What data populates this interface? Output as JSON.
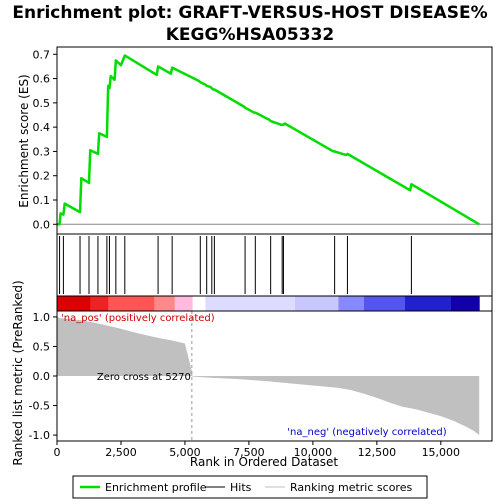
{
  "chart_data": {
    "type": "line",
    "title_line1": "Enrichment plot: GRAFT‐VERSUS‐HOST DISEASE%",
    "title_line2": "KEGG%HSA05332",
    "xlabel": "Rank in Ordered Dataset",
    "ylabel_top": "Enrichment score (ES)",
    "ylabel_bottom": "Ranked list metric (PreRanked)",
    "xlim": [
      0,
      17000
    ],
    "ylim_es": [
      -0.04,
      0.73
    ],
    "ylim_metric": [
      -1.1,
      1.1
    ],
    "x_ticks": [
      0,
      2500,
      5000,
      7500,
      10000,
      12500,
      15000
    ],
    "x_tick_labels": [
      "0",
      "2,500",
      "5,000",
      "7,500",
      "10,000",
      "12,500",
      "15,000"
    ],
    "es_ticks": [
      0.0,
      0.1,
      0.2,
      0.3,
      0.4,
      0.5,
      0.6,
      0.7
    ],
    "es_tick_labels": [
      "0.0",
      "0.1",
      "0.2",
      "0.3",
      "0.4",
      "0.5",
      "0.6",
      "0.7"
    ],
    "metric_ticks": [
      1.0,
      0.5,
      0.0,
      -0.5,
      -1.0
    ],
    "metric_tick_labels": [
      "1.0",
      "0.5",
      "0.0",
      "-0.5",
      "-1.0"
    ],
    "enrichment_profile": {
      "name": "Enrichment profile",
      "color": "#00dd00",
      "x": [
        0,
        100,
        140,
        250,
        300,
        900,
        950,
        1250,
        1300,
        1600,
        1650,
        1950,
        2000,
        2050,
        2100,
        2250,
        2300,
        2500,
        2650,
        3900,
        3950,
        4450,
        4500,
        5550,
        5600,
        5800,
        5850,
        6000,
        6050,
        6100,
        6150,
        7300,
        7350,
        7700,
        7750,
        8300,
        8350,
        8750,
        8800,
        8850,
        8900,
        10800,
        10850,
        11300,
        11350,
        13800,
        13850,
        16500
      ],
      "y": [
        0.0,
        0.0,
        0.045,
        0.04,
        0.085,
        0.05,
        0.19,
        0.17,
        0.305,
        0.29,
        0.375,
        0.36,
        0.57,
        0.56,
        0.61,
        0.595,
        0.675,
        0.655,
        0.695,
        0.615,
        0.65,
        0.62,
        0.645,
        0.59,
        0.585,
        0.575,
        0.57,
        0.565,
        0.56,
        0.555,
        0.555,
        0.485,
        0.48,
        0.46,
        0.46,
        0.43,
        0.425,
        0.41,
        0.41,
        0.41,
        0.415,
        0.3,
        0.3,
        0.285,
        0.29,
        0.14,
        0.165,
        0.0
      ]
    },
    "hits": [
      100,
      250,
      900,
      1250,
      1600,
      1950,
      2050,
      2300,
      2650,
      3950,
      4500,
      5600,
      5850,
      6050,
      6150,
      7350,
      7750,
      8350,
      8800,
      8850,
      10850,
      11350,
      13850
    ],
    "hit_color": "#000000",
    "ranking_metric": {
      "name": "Ranking metric scores",
      "color": "#c0c0c0",
      "x": [
        0,
        100,
        300,
        600,
        1000,
        1500,
        2000,
        2500,
        3000,
        3500,
        4000,
        4500,
        5000,
        5270,
        5300,
        6000,
        7000,
        8000,
        9000,
        10000,
        11000,
        11500,
        12000,
        12500,
        13000,
        13500,
        14000,
        14500,
        15000,
        15500,
        16000,
        16300,
        16500
      ],
      "y": [
        1.0,
        0.98,
        0.97,
        0.96,
        0.94,
        0.9,
        0.85,
        0.8,
        0.74,
        0.69,
        0.64,
        0.6,
        0.55,
        0.08,
        -0.01,
        -0.03,
        -0.05,
        -0.08,
        -0.12,
        -0.16,
        -0.2,
        -0.24,
        -0.3,
        -0.37,
        -0.45,
        -0.52,
        -0.56,
        -0.62,
        -0.68,
        -0.76,
        -0.86,
        -0.93,
        -1.0
      ]
    },
    "zero_cross_label": "Zero cross at 5270",
    "zero_cross_x": 5270,
    "pos_label": "'na_pos' (positively correlated)",
    "neg_label": "'na_neg' (negatively correlated)",
    "pos_label_color": "#cc0000",
    "neg_label_color": "#0000cc",
    "heat_bar": {
      "stops": [
        {
          "x": 0,
          "color": "#dd0000"
        },
        {
          "x": 1300,
          "color": "#ee2222"
        },
        {
          "x": 2000,
          "color": "#ff5555"
        },
        {
          "x": 3800,
          "color": "#ff8888"
        },
        {
          "x": 4600,
          "color": "#ffbbdd"
        },
        {
          "x": 5300,
          "color": "#ffffff"
        },
        {
          "x": 5800,
          "color": "#dcdcff"
        },
        {
          "x": 9300,
          "color": "#c8c8ff"
        },
        {
          "x": 11000,
          "color": "#8888ff"
        },
        {
          "x": 12000,
          "color": "#5555ee"
        },
        {
          "x": 13600,
          "color": "#2222cc"
        },
        {
          "x": 15400,
          "color": "#1100aa"
        },
        {
          "x": 16500,
          "color": "#1100aa"
        }
      ]
    },
    "legend": [
      {
        "label": "Enrichment profile",
        "color": "#00dd00",
        "kind": "thick-line"
      },
      {
        "label": "Hits",
        "color": "#000000",
        "kind": "thin-line"
      },
      {
        "label": "Ranking metric scores",
        "color": "#c0c0c0",
        "kind": "thin-line"
      }
    ]
  }
}
